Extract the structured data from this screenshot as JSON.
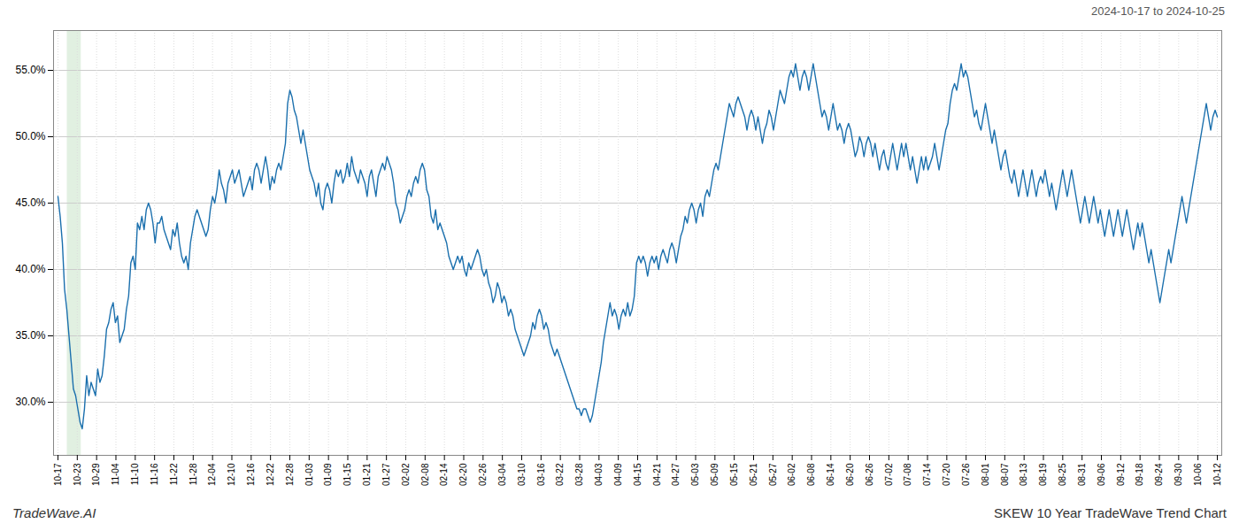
{
  "chart_data": {
    "type": "line",
    "title": "SKEW 10 Year TradeWave Trend Chart",
    "subtitle": "2024-10-17 to 2024-10-25",
    "caption": "TradeWave.AI",
    "color": "#1a6fad",
    "grid": true,
    "highlight": {
      "x": [
        4.208,
        10.52
      ],
      "color": "#d4ead4"
    },
    "xlim": [
      -2,
      527
    ],
    "xticks": [
      {
        "value": 0,
        "label": "10-17"
      },
      {
        "value": 8.75,
        "label": "10-23"
      },
      {
        "value": 17.5,
        "label": "10-29"
      },
      {
        "value": 26.25,
        "label": "11-04"
      },
      {
        "value": 35,
        "label": "11-10"
      },
      {
        "value": 43.75,
        "label": "11-16"
      },
      {
        "value": 52.5,
        "label": "11-22"
      },
      {
        "value": 61.25,
        "label": "11-28"
      },
      {
        "value": 70,
        "label": "12-04"
      },
      {
        "value": 78.75,
        "label": "12-10"
      },
      {
        "value": 87.5,
        "label": "12-16"
      },
      {
        "value": 96.25,
        "label": "12-22"
      },
      {
        "value": 105,
        "label": "12-28"
      },
      {
        "value": 113.75,
        "label": "01-03"
      },
      {
        "value": 122.5,
        "label": "01-09"
      },
      {
        "value": 131.25,
        "label": "01-15"
      },
      {
        "value": 140,
        "label": "01-21"
      },
      {
        "value": 148.75,
        "label": "01-27"
      },
      {
        "value": 157.5,
        "label": "02-02"
      },
      {
        "value": 166.25,
        "label": "02-08"
      },
      {
        "value": 175,
        "label": "02-14"
      },
      {
        "value": 183.75,
        "label": "02-20"
      },
      {
        "value": 192.5,
        "label": "02-26"
      },
      {
        "value": 201.25,
        "label": "03-04"
      },
      {
        "value": 210,
        "label": "03-10"
      },
      {
        "value": 218.75,
        "label": "03-16"
      },
      {
        "value": 227.5,
        "label": "03-22"
      },
      {
        "value": 236.25,
        "label": "03-28"
      },
      {
        "value": 245,
        "label": "04-03"
      },
      {
        "value": 253.75,
        "label": "04-09"
      },
      {
        "value": 262.5,
        "label": "04-15"
      },
      {
        "value": 271.25,
        "label": "04-21"
      },
      {
        "value": 280,
        "label": "04-27"
      },
      {
        "value": 288.75,
        "label": "05-03"
      },
      {
        "value": 297.5,
        "label": "05-09"
      },
      {
        "value": 306.25,
        "label": "05-15"
      },
      {
        "value": 315,
        "label": "05-21"
      },
      {
        "value": 323.75,
        "label": "05-27"
      },
      {
        "value": 332.5,
        "label": "06-02"
      },
      {
        "value": 341.25,
        "label": "06-08"
      },
      {
        "value": 350,
        "label": "06-14"
      },
      {
        "value": 358.75,
        "label": "06-20"
      },
      {
        "value": 367.5,
        "label": "06-26"
      },
      {
        "value": 376.25,
        "label": "07-02"
      },
      {
        "value": 385,
        "label": "07-08"
      },
      {
        "value": 393.75,
        "label": "07-14"
      },
      {
        "value": 402.5,
        "label": "07-20"
      },
      {
        "value": 411.25,
        "label": "07-26"
      },
      {
        "value": 420,
        "label": "08-01"
      },
      {
        "value": 428.75,
        "label": "08-07"
      },
      {
        "value": 437.5,
        "label": "08-13"
      },
      {
        "value": 446.25,
        "label": "08-19"
      },
      {
        "value": 455,
        "label": "08-25"
      },
      {
        "value": 463.75,
        "label": "08-31"
      },
      {
        "value": 472.5,
        "label": "09-06"
      },
      {
        "value": 481.25,
        "label": "09-12"
      },
      {
        "value": 490,
        "label": "09-18"
      },
      {
        "value": 498.75,
        "label": "09-24"
      },
      {
        "value": 507.5,
        "label": "09-30"
      },
      {
        "value": 516.25,
        "label": "10-06"
      },
      {
        "value": 525,
        "label": "10-12"
      }
    ],
    "ylim": [
      26.0,
      58.0
    ],
    "yticks": [
      {
        "value": 30.0,
        "label": "30.0%"
      },
      {
        "value": 35.0,
        "label": "35.0%"
      },
      {
        "value": 40.0,
        "label": "40.0%"
      },
      {
        "value": 45.0,
        "label": "45.0%"
      },
      {
        "value": 50.0,
        "label": "50.0%"
      },
      {
        "value": 55.0,
        "label": "55.0%"
      }
    ],
    "values": [
      45.5,
      44.0,
      42.0,
      38.5,
      37.0,
      35.0,
      33.0,
      31.0,
      30.5,
      29.5,
      28.5,
      28.0,
      29.5,
      32.0,
      30.5,
      31.5,
      31.0,
      30.5,
      32.5,
      31.5,
      32.0,
      33.5,
      35.5,
      36.0,
      37.0,
      37.5,
      36.0,
      36.5,
      34.5,
      35.0,
      35.5,
      37.0,
      38.0,
      40.5,
      41.0,
      40.0,
      43.5,
      43.0,
      44.0,
      43.0,
      44.5,
      45.0,
      44.5,
      43.5,
      42.0,
      43.5,
      43.5,
      44.0,
      43.0,
      42.5,
      42.0,
      41.5,
      43.0,
      42.5,
      43.5,
      42.0,
      41.0,
      40.5,
      41.0,
      40.0,
      42.0,
      43.0,
      44.0,
      44.5,
      44.0,
      43.5,
      43.0,
      42.5,
      43.0,
      44.5,
      45.5,
      45.0,
      46.0,
      47.5,
      46.5,
      46.0,
      45.0,
      46.5,
      47.0,
      47.5,
      46.5,
      47.0,
      47.5,
      46.5,
      45.5,
      46.0,
      46.5,
      47.0,
      46.0,
      47.5,
      48.0,
      47.5,
      46.5,
      47.5,
      48.5,
      47.5,
      46.0,
      47.0,
      46.5,
      47.5,
      48.0,
      47.5,
      48.5,
      49.5,
      52.5,
      53.5,
      53.0,
      52.0,
      51.5,
      50.5,
      49.5,
      50.5,
      49.5,
      48.5,
      47.5,
      47.0,
      46.5,
      45.5,
      46.5,
      45.0,
      44.5,
      46.0,
      46.5,
      46.0,
      45.0,
      46.5,
      47.5,
      47.0,
      47.5,
      46.5,
      47.0,
      48.0,
      47.0,
      48.5,
      47.5,
      47.0,
      46.5,
      47.5,
      47.0,
      46.5,
      45.5,
      47.0,
      47.5,
      46.5,
      45.5,
      47.0,
      47.5,
      48.0,
      47.5,
      48.5,
      48.0,
      47.5,
      46.5,
      45.0,
      44.5,
      43.5,
      44.0,
      44.5,
      45.5,
      46.0,
      45.5,
      46.5,
      47.0,
      46.5,
      47.5,
      48.0,
      47.5,
      46.0,
      45.5,
      44.0,
      43.5,
      44.5,
      43.0,
      43.5,
      43.0,
      42.5,
      42.0,
      41.0,
      40.5,
      40.0,
      40.5,
      41.0,
      40.5,
      41.0,
      40.0,
      39.5,
      40.5,
      40.0,
      40.5,
      41.0,
      41.5,
      41.0,
      40.0,
      39.5,
      40.0,
      39.0,
      38.5,
      37.5,
      38.0,
      39.0,
      38.5,
      37.5,
      38.0,
      37.5,
      36.5,
      37.0,
      36.5,
      35.5,
      35.0,
      34.5,
      34.0,
      33.5,
      34.0,
      34.5,
      35.0,
      36.0,
      35.5,
      36.5,
      37.0,
      36.5,
      35.5,
      36.0,
      35.5,
      34.5,
      34.0,
      33.5,
      34.0,
      33.5,
      33.0,
      32.5,
      32.0,
      31.5,
      31.0,
      30.5,
      30.0,
      29.5,
      29.5,
      29.0,
      29.5,
      29.5,
      29.0,
      28.5,
      29.0,
      30.0,
      31.0,
      32.0,
      33.0,
      34.5,
      35.5,
      36.5,
      37.5,
      36.5,
      37.0,
      36.5,
      35.5,
      36.5,
      37.0,
      36.5,
      37.5,
      36.5,
      37.0,
      38.0,
      40.5,
      41.0,
      40.5,
      41.0,
      40.5,
      39.5,
      40.5,
      41.0,
      40.5,
      41.0,
      40.0,
      41.0,
      41.5,
      41.0,
      40.5,
      41.5,
      42.0,
      41.5,
      40.5,
      41.5,
      42.5,
      43.0,
      44.0,
      43.5,
      44.5,
      45.0,
      44.5,
      43.5,
      44.5,
      45.0,
      44.0,
      45.5,
      46.0,
      45.5,
      46.5,
      47.5,
      48.0,
      47.5,
      48.5,
      49.5,
      50.5,
      51.5,
      52.5,
      52.0,
      51.5,
      52.5,
      53.0,
      52.5,
      52.0,
      51.5,
      50.5,
      51.5,
      52.0,
      51.5,
      50.5,
      51.5,
      50.5,
      49.5,
      50.5,
      51.0,
      52.0,
      51.5,
      50.5,
      51.5,
      52.5,
      53.5,
      53.0,
      52.5,
      53.5,
      54.5,
      55.0,
      54.5,
      55.5,
      54.5,
      53.5,
      54.5,
      55.0,
      54.5,
      53.5,
      54.5,
      55.5,
      54.5,
      53.5,
      52.5,
      51.5,
      52.0,
      51.5,
      50.5,
      51.5,
      52.5,
      51.5,
      50.5,
      51.0,
      50.5,
      49.5,
      50.5,
      51.0,
      50.5,
      49.5,
      48.5,
      49.0,
      50.0,
      49.5,
      48.5,
      49.5,
      50.0,
      49.5,
      48.5,
      49.5,
      48.5,
      47.5,
      48.5,
      49.0,
      48.0,
      47.5,
      48.5,
      49.5,
      48.5,
      47.5,
      48.5,
      49.5,
      48.5,
      49.5,
      48.5,
      47.5,
      48.5,
      47.5,
      46.5,
      47.5,
      48.5,
      47.5,
      48.5,
      47.5,
      48.0,
      48.5,
      49.5,
      48.5,
      47.5,
      48.5,
      49.5,
      50.5,
      51.0,
      52.5,
      53.5,
      54.0,
      53.5,
      54.5,
      55.5,
      54.5,
      55.0,
      54.5,
      53.5,
      52.5,
      51.5,
      52.0,
      51.0,
      50.5,
      51.5,
      52.5,
      51.5,
      50.5,
      49.5,
      50.5,
      49.5,
      48.5,
      47.5,
      48.5,
      49.0,
      48.0,
      47.0,
      46.5,
      47.5,
      46.5,
      45.5,
      46.5,
      47.5,
      46.5,
      45.5,
      46.5,
      47.5,
      46.5,
      45.5,
      46.5,
      47.0,
      46.5,
      47.5,
      46.5,
      45.5,
      46.5,
      45.5,
      44.5,
      45.5,
      46.5,
      47.5,
      46.5,
      45.5,
      46.5,
      47.5,
      46.5,
      45.5,
      44.5,
      43.5,
      44.5,
      45.5,
      44.5,
      43.5,
      44.5,
      45.5,
      44.5,
      43.5,
      44.5,
      43.5,
      42.5,
      43.5,
      44.5,
      43.5,
      42.5,
      43.5,
      44.5,
      43.5,
      42.5,
      43.5,
      44.5,
      43.5,
      42.5,
      41.5,
      42.5,
      43.5,
      42.5,
      43.5,
      42.5,
      41.5,
      40.5,
      41.5,
      40.5,
      39.5,
      38.5,
      37.5,
      38.5,
      39.5,
      40.5,
      41.5,
      40.5,
      41.5,
      42.5,
      43.5,
      44.5,
      45.5,
      44.5,
      43.5,
      44.5,
      45.5,
      46.5,
      47.5,
      48.5,
      49.5,
      50.5,
      51.5,
      52.5,
      51.5,
      50.5,
      51.5,
      52.0,
      51.5
    ]
  }
}
